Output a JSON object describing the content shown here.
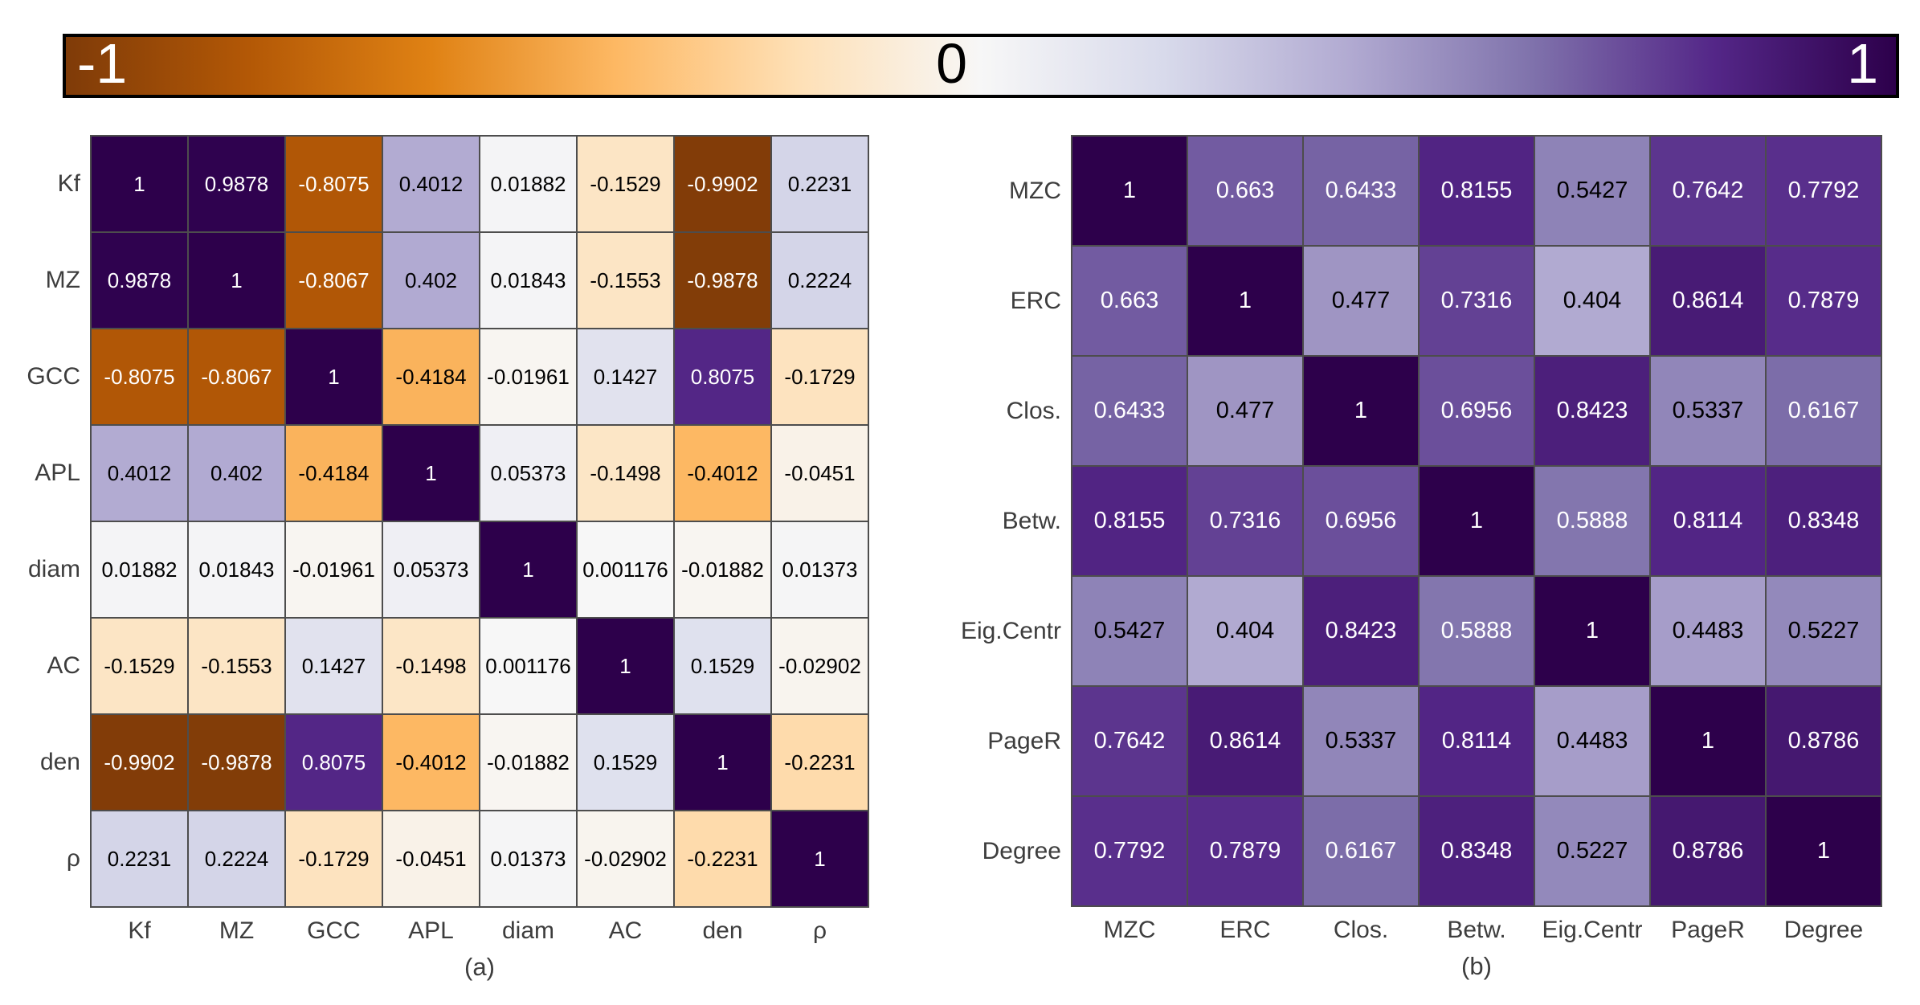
{
  "colorbar": {
    "min_label": "-1",
    "mid_label": "0",
    "max_label": "1",
    "border_color": "#000000",
    "domain": [
      -1,
      1
    ],
    "colormap_name": "PuOr reversed (orange = negative, purple = positive)",
    "colormap_stops": [
      "#7f3b08",
      "#b35806",
      "#e08214",
      "#fdb863",
      "#fee0b6",
      "#f7f7f7",
      "#d8daeb",
      "#b2abd2",
      "#8073ac",
      "#542788",
      "#2d004b"
    ]
  },
  "text_colors": {
    "on_dark": "#ffffff",
    "on_light": "#000000"
  },
  "gridline_color": "#4d4d4d",
  "label_color": "#3d3d3d",
  "chart_data": [
    {
      "type": "heatmap",
      "caption": "(a)",
      "legend_position": "top shared colorbar",
      "grid": true,
      "value_range": [
        -1,
        1
      ],
      "labels": [
        "Kf",
        "MZ",
        "GCC",
        "APL",
        "diam",
        "AC",
        "den",
        "ρ"
      ],
      "matrix": [
        [
          "1",
          "0.9878",
          "-0.8075",
          "0.4012",
          "0.01882",
          "-0.1529",
          "-0.9902",
          "0.2231"
        ],
        [
          "0.9878",
          "1",
          "-0.8067",
          "0.402",
          "0.01843",
          "-0.1553",
          "-0.9878",
          "0.2224"
        ],
        [
          "-0.8075",
          "-0.8067",
          "1",
          "-0.4184",
          "-0.01961",
          "0.1427",
          "0.8075",
          "-0.1729"
        ],
        [
          "0.4012",
          "0.402",
          "-0.4184",
          "1",
          "0.05373",
          "-0.1498",
          "-0.4012",
          "-0.0451"
        ],
        [
          "0.01882",
          "0.01843",
          "-0.01961",
          "0.05373",
          "1",
          "0.001176",
          "-0.01882",
          "0.01373"
        ],
        [
          "-0.1529",
          "-0.1553",
          "0.1427",
          "-0.1498",
          "0.001176",
          "1",
          "0.1529",
          "-0.02902"
        ],
        [
          "-0.9902",
          "-0.9878",
          "0.8075",
          "-0.4012",
          "-0.01882",
          "0.1529",
          "1",
          "-0.2231"
        ],
        [
          "0.2231",
          "0.2224",
          "-0.1729",
          "-0.0451",
          "0.01373",
          "-0.02902",
          "-0.2231",
          "1"
        ]
      ]
    },
    {
      "type": "heatmap",
      "caption": "(b)",
      "legend_position": "top shared colorbar",
      "grid": true,
      "value_range": [
        -1,
        1
      ],
      "labels": [
        "MZC",
        "ERC",
        "Clos.",
        "Betw.",
        "Eig.Centr",
        "PageR",
        "Degree"
      ],
      "matrix": [
        [
          "1",
          "0.663",
          "0.6433",
          "0.8155",
          "0.5427",
          "0.7642",
          "0.7792"
        ],
        [
          "0.663",
          "1",
          "0.477",
          "0.7316",
          "0.404",
          "0.8614",
          "0.7879"
        ],
        [
          "0.6433",
          "0.477",
          "1",
          "0.6956",
          "0.8423",
          "0.5337",
          "0.6167"
        ],
        [
          "0.8155",
          "0.7316",
          "0.6956",
          "1",
          "0.5888",
          "0.8114",
          "0.8348"
        ],
        [
          "0.5427",
          "0.404",
          "0.8423",
          "0.5888",
          "1",
          "0.4483",
          "0.5227"
        ],
        [
          "0.7642",
          "0.8614",
          "0.5337",
          "0.8114",
          "0.4483",
          "1",
          "0.8786"
        ],
        [
          "0.7792",
          "0.7879",
          "0.6167",
          "0.8348",
          "0.5227",
          "0.8786",
          "1"
        ]
      ]
    }
  ]
}
